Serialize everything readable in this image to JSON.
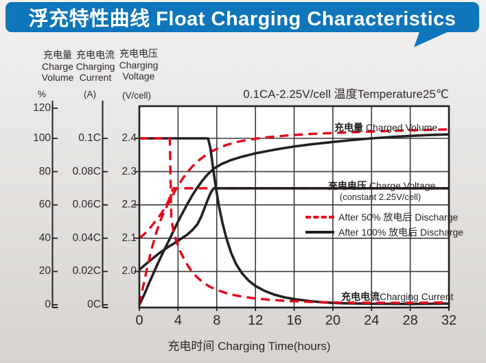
{
  "banner": {
    "title": "浮充特性曲线 Float Charging Characteristics",
    "bg_color": "#0f76bc",
    "text_color": "#ffffff"
  },
  "condition_note": "0.1CA-2.25V/cell  温度Temperature25℃",
  "axes": {
    "volume": {
      "title_zh": "充电量",
      "title_en1": "Charge",
      "title_en2": "Volume",
      "unit": "%",
      "ticks": [
        "120",
        "100",
        "80",
        "60",
        "40",
        "20",
        "0"
      ]
    },
    "current": {
      "title_zh": "充电电流",
      "title_en1": "Charging",
      "title_en2": "Current",
      "unit": "(A)",
      "ticks": [
        "0.1C",
        "0.08C",
        "0.06C",
        "0.04C",
        "0.02C",
        "0C"
      ]
    },
    "voltage": {
      "title_zh": "充电电压",
      "title_en1": "Charging",
      "title_en2": "Voltage",
      "unit": "(V/cell)",
      "ticks": [
        "2.4",
        "2.3",
        "2.2",
        "2.1",
        "2.0"
      ]
    },
    "x": {
      "title": "充电时间 Charging Time(hours)",
      "ticks": [
        "0",
        "4",
        "8",
        "12",
        "16",
        "20",
        "24",
        "28",
        "32"
      ]
    }
  },
  "plot_labels": {
    "charged_volume_zh": "充电量",
    "charged_volume_en": " Charged Volume",
    "charge_voltage_zh": "充电电压",
    "charge_voltage_en": " Charge Voltage",
    "charge_voltage_sub": "(constant 2.25V/cell)",
    "charging_current_zh": "充电电流",
    "charging_current_en": "Charging Current"
  },
  "legend": [
    {
      "label": "After 50%  放电后 Discharge",
      "style": "dashed",
      "color": "#e60019"
    },
    {
      "label": "After 100%  放电后 Discharge",
      "style": "solid",
      "color": "#231f20"
    }
  ],
  "colors": {
    "red_curve": "#e60019",
    "black_curve": "#231f20",
    "grid": "#3b3738",
    "plot_bg": "#ffffff"
  },
  "chart_data": {
    "type": "line",
    "title": "浮充特性曲线 Float Charging Characteristics",
    "conditions": "0.1CA-2.25V/cell, 温度Temperature 25℃",
    "x_axis": {
      "label": "充电时间 Charging Time(hours)",
      "min": 0,
      "max": 32,
      "tick_step": 4
    },
    "y_axes": [
      {
        "id": "charge_volume",
        "label": "充电量 Charge Volume",
        "unit": "%",
        "min": 0,
        "max": 120
      },
      {
        "id": "charging_current",
        "label": "充电电流 Charging Current",
        "unit": "A",
        "min": 0,
        "max": 0.1
      },
      {
        "id": "charge_voltage",
        "label": "充电电压 Charging Voltage",
        "unit": "V/cell",
        "min": 2.0,
        "max": 2.4
      }
    ],
    "grid": true,
    "legend_position": "center",
    "series": [
      {
        "id": "voltage_after_50",
        "quantity": "charge_voltage",
        "condition": "after 50% discharge",
        "color": "#e60019",
        "style": "dashed",
        "points": [
          [
            0,
            2.1
          ],
          [
            0.5,
            2.112
          ],
          [
            1,
            2.127
          ],
          [
            1.5,
            2.145
          ],
          [
            2,
            2.163
          ],
          [
            2.4,
            2.18
          ],
          [
            2.8,
            2.2
          ],
          [
            3.05,
            2.215
          ],
          [
            3.25,
            2.232
          ],
          [
            3.4,
            2.243
          ],
          [
            3.55,
            2.25
          ],
          [
            8,
            2.25
          ],
          [
            20,
            2.25
          ],
          [
            32,
            2.25
          ]
        ]
      },
      {
        "id": "voltage_after_100",
        "quantity": "charge_voltage",
        "condition": "after 100% discharge",
        "color": "#231f20",
        "style": "solid",
        "points": [
          [
            0,
            2.005
          ],
          [
            0.5,
            2.018
          ],
          [
            1,
            2.03
          ],
          [
            1.5,
            2.042
          ],
          [
            2,
            2.054
          ],
          [
            2.5,
            2.064
          ],
          [
            3,
            2.074
          ],
          [
            3.5,
            2.083
          ],
          [
            4,
            2.092
          ],
          [
            4.5,
            2.102
          ],
          [
            5,
            2.112
          ],
          [
            5.5,
            2.125
          ],
          [
            6,
            2.142
          ],
          [
            6.4,
            2.165
          ],
          [
            6.8,
            2.195
          ],
          [
            7.1,
            2.218
          ],
          [
            7.4,
            2.238
          ],
          [
            7.65,
            2.249
          ],
          [
            7.8,
            2.25
          ],
          [
            20,
            2.25
          ],
          [
            32,
            2.25
          ]
        ]
      },
      {
        "id": "volume_after_100",
        "quantity": "charge_volume",
        "condition": "after 100% discharge",
        "color": "#231f20",
        "style": "solid",
        "points": [
          [
            0,
            0
          ],
          [
            0.5,
            6
          ],
          [
            1,
            13
          ],
          [
            1.5,
            19.5
          ],
          [
            2,
            26
          ],
          [
            2.5,
            32
          ],
          [
            3,
            38
          ],
          [
            3.5,
            44
          ],
          [
            4,
            50
          ],
          [
            4.5,
            55.5
          ],
          [
            5,
            61
          ],
          [
            5.5,
            66
          ],
          [
            6,
            70.5
          ],
          [
            6.5,
            74.5
          ],
          [
            7,
            78
          ],
          [
            7.7,
            81.8
          ],
          [
            8.5,
            84.6
          ],
          [
            9.5,
            87
          ],
          [
            10.5,
            88.8
          ],
          [
            12,
            91
          ],
          [
            14,
            93.2
          ],
          [
            16,
            95.1
          ],
          [
            18,
            96.6
          ],
          [
            20,
            97.8
          ],
          [
            22,
            99
          ],
          [
            24,
            100
          ],
          [
            26,
            100.8
          ],
          [
            28,
            101.5
          ],
          [
            30,
            102
          ],
          [
            32,
            102.4
          ]
        ]
      },
      {
        "id": "volume_after_50",
        "quantity": "charge_volume",
        "condition": "after 50% discharge",
        "color": "#e60019",
        "style": "dashed",
        "points": [
          [
            0,
            0
          ],
          [
            0.4,
            11
          ],
          [
            0.8,
            22
          ],
          [
            1.2,
            32
          ],
          [
            1.6,
            40.5
          ],
          [
            2,
            48
          ],
          [
            2.5,
            55
          ],
          [
            3,
            61
          ],
          [
            3.5,
            66.5
          ],
          [
            4,
            71.5
          ],
          [
            4.5,
            76
          ],
          [
            5,
            80
          ],
          [
            5.5,
            83.2
          ],
          [
            6,
            86
          ],
          [
            6.5,
            88.4
          ],
          [
            7,
            90.4
          ],
          [
            7.5,
            92.2
          ],
          [
            8,
            93.7
          ],
          [
            9,
            96
          ],
          [
            10,
            97.7
          ],
          [
            11,
            98.9
          ],
          [
            12,
            99.8
          ],
          [
            13,
            100.5
          ],
          [
            14,
            101.1
          ],
          [
            16,
            102
          ],
          [
            18,
            102.7
          ],
          [
            20,
            103.2
          ],
          [
            22,
            103.7
          ],
          [
            24,
            104.1
          ],
          [
            26,
            104.5
          ],
          [
            28,
            104.8
          ],
          [
            30,
            105.1
          ],
          [
            32,
            105.4
          ]
        ]
      },
      {
        "id": "current_after_100",
        "quantity": "charging_current",
        "condition": "after 100% discharge",
        "color": "#231f20",
        "style": "solid",
        "points": [
          [
            0,
            0.1
          ],
          [
            7.1,
            0.1
          ],
          [
            7.35,
            0.094
          ],
          [
            7.6,
            0.083
          ],
          [
            7.9,
            0.071
          ],
          [
            8.2,
            0.06
          ],
          [
            8.6,
            0.049
          ],
          [
            9,
            0.04
          ],
          [
            9.5,
            0.031
          ],
          [
            10,
            0.0245
          ],
          [
            10.6,
            0.019
          ],
          [
            11.3,
            0.0145
          ],
          [
            12,
            0.0113
          ],
          [
            13,
            0.0082
          ],
          [
            14,
            0.006
          ],
          [
            15,
            0.0045
          ],
          [
            16,
            0.0034
          ],
          [
            17.5,
            0.0023
          ],
          [
            19,
            0.0015
          ],
          [
            21,
            0.0009
          ],
          [
            24,
            0.0006
          ],
          [
            28,
            0.0005
          ],
          [
            32,
            0.0007
          ]
        ]
      },
      {
        "id": "current_after_50",
        "quantity": "charging_current",
        "condition": "after 50% discharge",
        "color": "#e60019",
        "style": "dashed",
        "points": [
          [
            0,
            0.1
          ],
          [
            3.15,
            0.1
          ],
          [
            3.3,
            0.052
          ],
          [
            3.5,
            0.045
          ],
          [
            3.8,
            0.0385
          ],
          [
            4.2,
            0.0325
          ],
          [
            4.7,
            0.0265
          ],
          [
            5.2,
            0.0218
          ],
          [
            5.8,
            0.0175
          ],
          [
            6.5,
            0.0138
          ],
          [
            7.3,
            0.0108
          ],
          [
            8.2,
            0.0085
          ],
          [
            9.2,
            0.0066
          ],
          [
            10.5,
            0.005
          ],
          [
            12,
            0.0038
          ],
          [
            13.5,
            0.003
          ],
          [
            15,
            0.0024
          ],
          [
            17,
            0.0019
          ],
          [
            19,
            0.0015
          ],
          [
            21,
            0.0013
          ],
          [
            24,
            0.0012
          ],
          [
            28,
            0.0012
          ],
          [
            32,
            0.0014
          ]
        ]
      }
    ]
  }
}
